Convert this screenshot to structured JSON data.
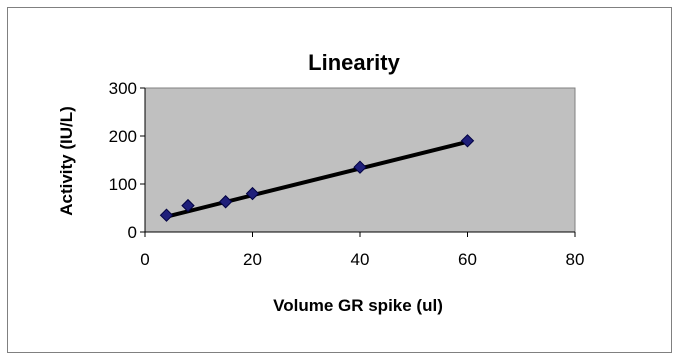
{
  "chart_data": {
    "type": "scatter",
    "title": "Linearity",
    "xlabel": "Volume GR spike (ul)",
    "ylabel": "Activity (IU/L)",
    "xlim": [
      0,
      80
    ],
    "ylim": [
      0,
      300
    ],
    "x_ticks": [
      "0",
      "20",
      "40",
      "60",
      "80"
    ],
    "y_ticks": [
      "0",
      "100",
      "200",
      "300"
    ],
    "grid": false,
    "legend": "none",
    "series": [
      {
        "x": [
          4,
          8,
          15,
          20,
          40,
          60
        ],
        "y": [
          35,
          55,
          63,
          80,
          135,
          190
        ],
        "marker": "diamond",
        "marker_color": "#1f1f7a"
      }
    ],
    "trendline": {
      "type": "linear",
      "x": [
        4,
        60
      ],
      "y": [
        32,
        188
      ],
      "color": "#000000"
    },
    "colors": {
      "plot_background": "#c0c0c0",
      "chart_background": "#ffffff",
      "border": "#808080"
    }
  }
}
